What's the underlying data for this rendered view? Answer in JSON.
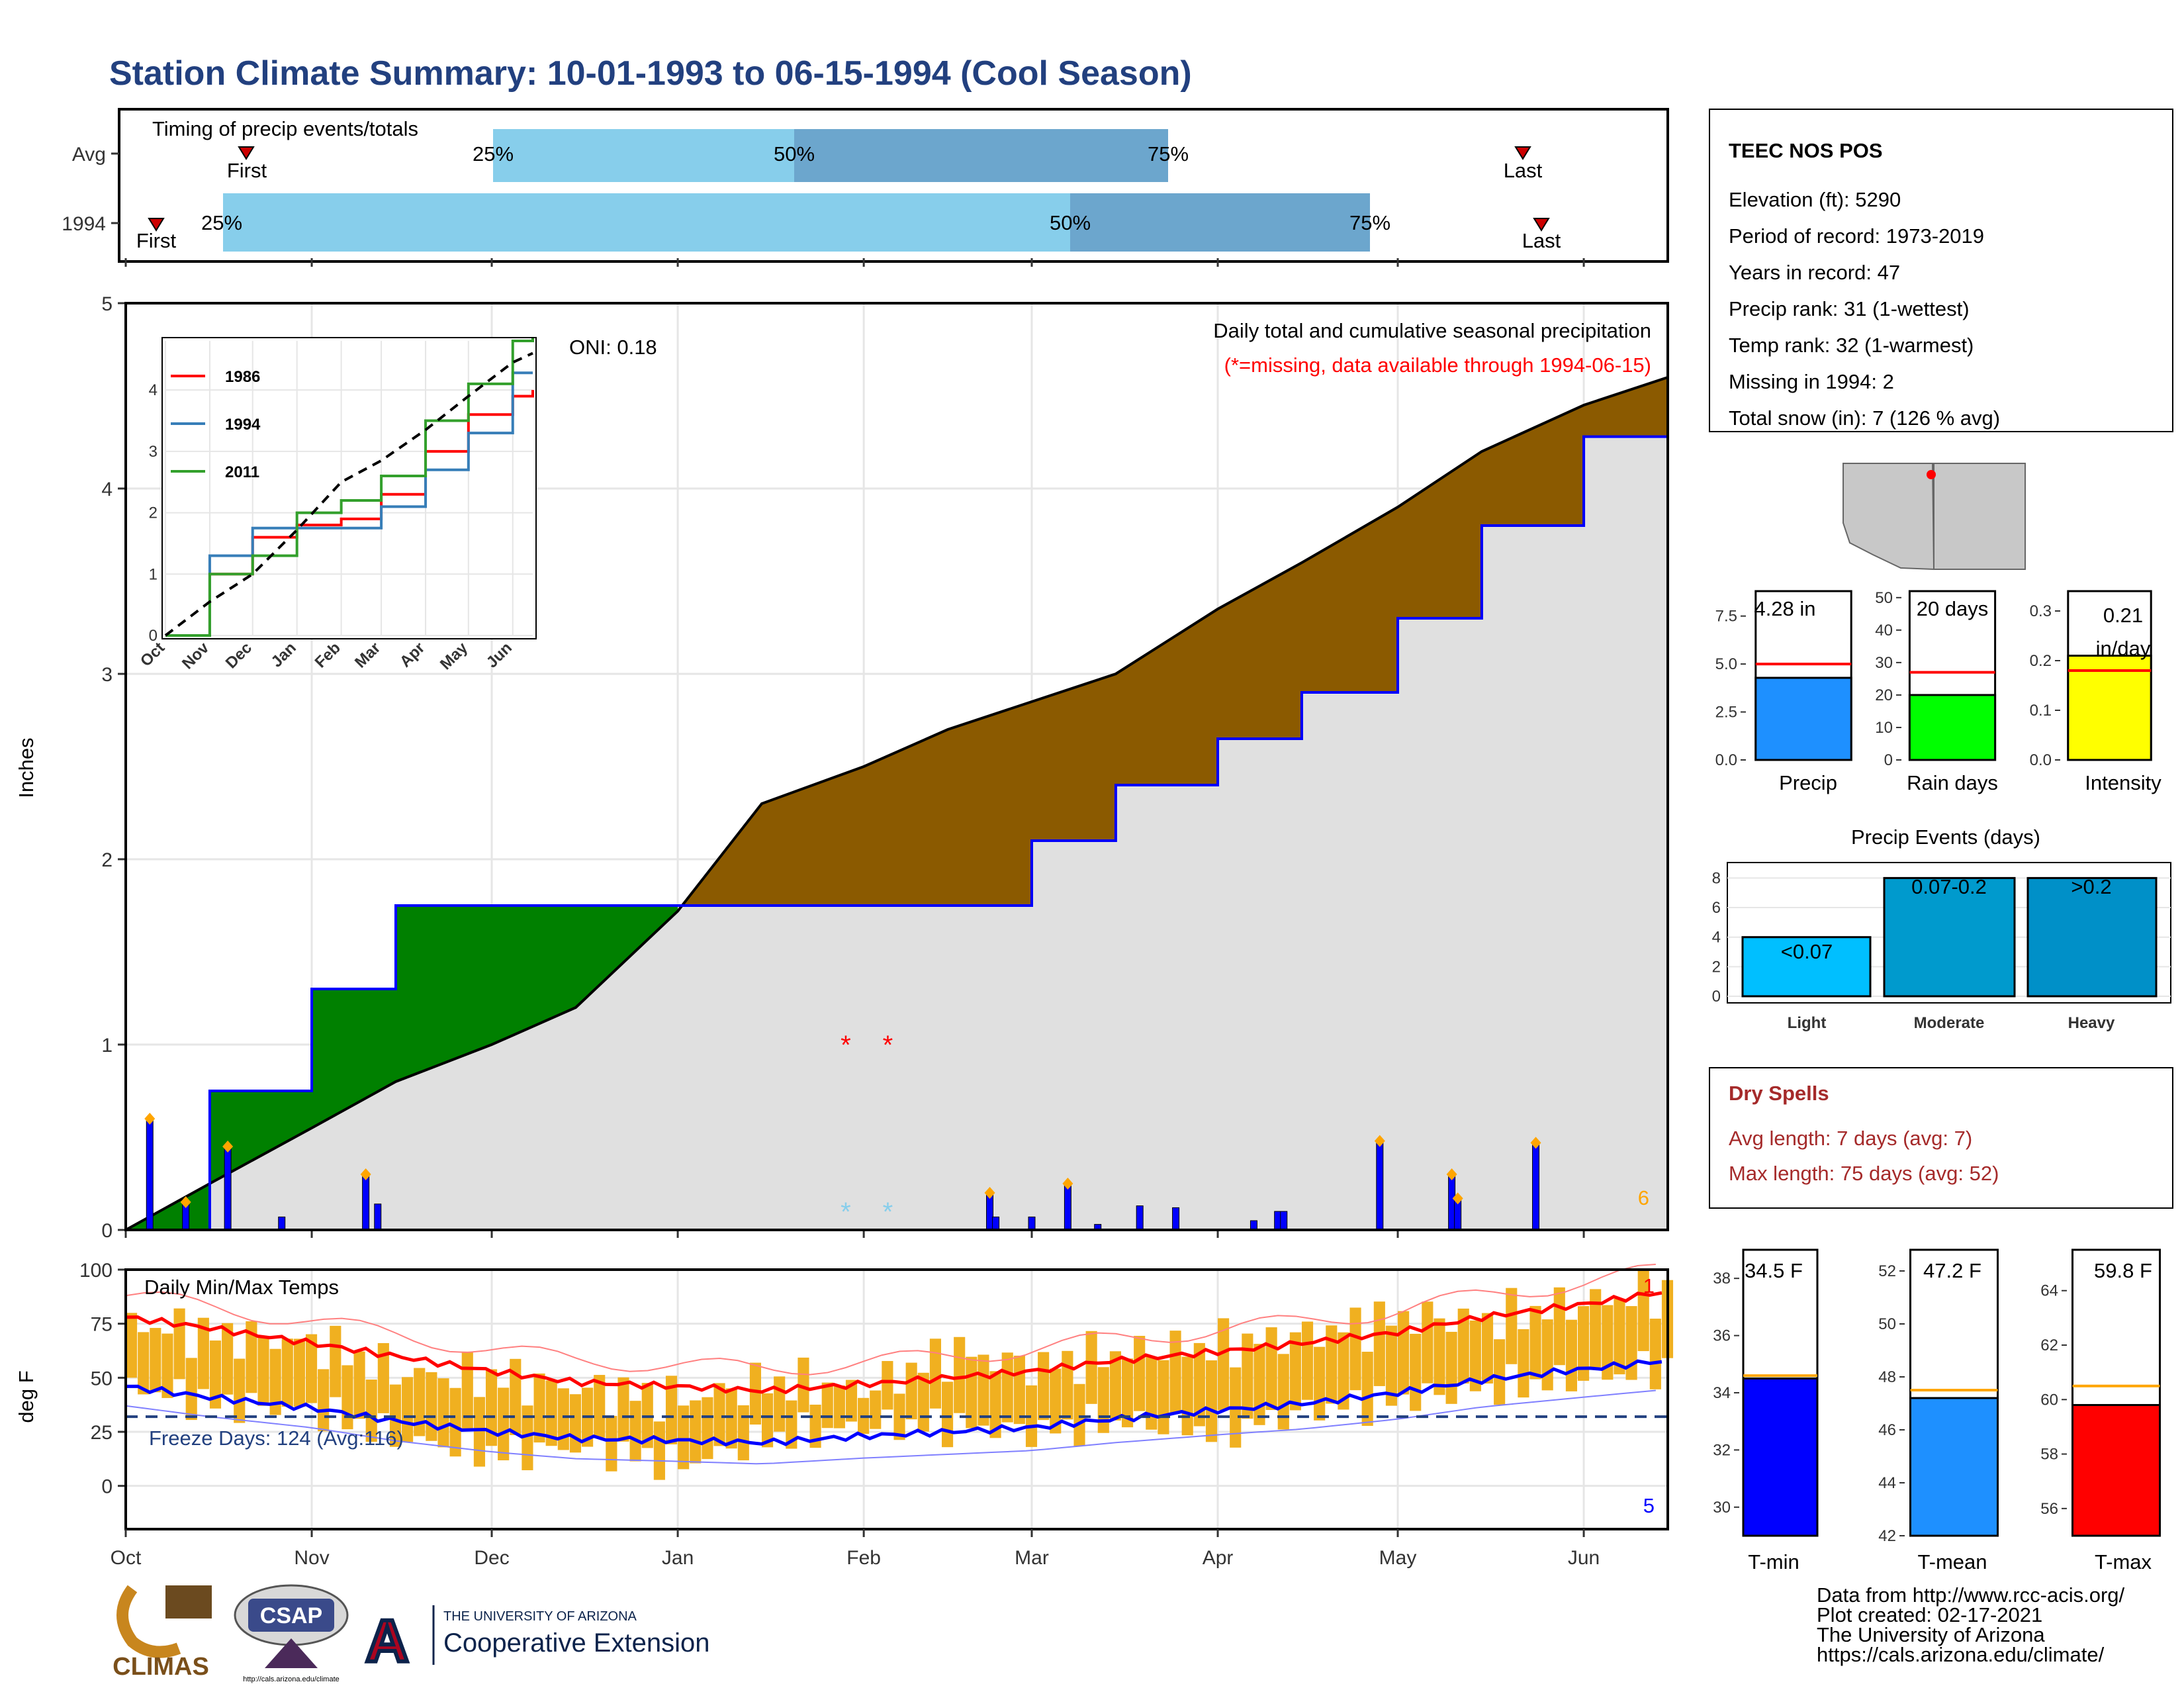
{
  "title": "Station Climate Summary: 10-01-1993 to 06-15-1994 (Cool Season)",
  "timing_panel": {
    "label": "Timing of precip events/totals",
    "rows": [
      {
        "name": "Avg",
        "first_label": "First",
        "last_label": "Last",
        "p25": "25%",
        "p50": "50%",
        "p75": "75%"
      },
      {
        "name": "1994",
        "first_label": "First",
        "last_label": "Last",
        "p25": "25%",
        "p50": "50%",
        "p75": "75%"
      }
    ]
  },
  "station": {
    "name": "TEEC NOS POS",
    "lines": [
      "Elevation (ft): 5290",
      "Period of record: 1973-2019",
      "Years in record: 47",
      "Precip rank: 31 (1-wettest)",
      "Temp rank: 32 (1-warmest)",
      "Missing in 1994: 2",
      "Total snow (in): 7 (126 % avg)"
    ]
  },
  "precip_panel": {
    "ylabel": "Inches",
    "oni": "ONI: 0.18",
    "legend_title": "Daily total and cumulative seasonal precipitation",
    "missing_note": "(*=missing, data available through 1994-06-15)",
    "corner_count": "6"
  },
  "temp_panel": {
    "ylabel": "deg F",
    "label": "Daily Min/Max Temps",
    "freeze_days": "Freeze Days: 124 (Avg:116)",
    "count_top": "1",
    "count_bottom": "5"
  },
  "month_labels": [
    "Oct",
    "Nov",
    "Dec",
    "Jan",
    "Feb",
    "Mar",
    "Apr",
    "May",
    "Jun"
  ],
  "inset_month_labels": [
    "Oct",
    "Nov",
    "Dec",
    "Jan",
    "Feb",
    "Mar",
    "Apr",
    "May",
    "Jun"
  ],
  "inset_legend": [
    "1986",
    "1994",
    "2011"
  ],
  "stat_bars": {
    "precip": {
      "label": "Precip",
      "value_label": "4.28 in"
    },
    "rain_days": {
      "label": "Rain days",
      "value_label": "20 days"
    },
    "intensity": {
      "label": "Intensity",
      "value_label": "0.21",
      "value_unit": "in/day"
    }
  },
  "events_panel": {
    "title": "Precip Events (days)",
    "bars": [
      {
        "name": "Light",
        "range": "<0.07"
      },
      {
        "name": "Moderate",
        "range": "0.07-0.2"
      },
      {
        "name": "Heavy",
        "range": ">0.2"
      }
    ]
  },
  "dry_spells": {
    "title": "Dry Spells",
    "avg": "Avg length: 7 days (avg: 7)",
    "max": "Max length: 75 days (avg: 52)"
  },
  "temp_bars": {
    "tmin": {
      "label": "T-min",
      "value_label": "34.5 F"
    },
    "tmean": {
      "label": "T-mean",
      "value_label": "47.2 F"
    },
    "tmax": {
      "label": "T-max",
      "value_label": "59.8 F"
    }
  },
  "credits": [
    "Data from http://www.rcc-acis.org/",
    "Plot created: 02-17-2021",
    "The University of Arizona",
    "https://cals.arizona.edu/climate/"
  ],
  "logos": {
    "climas": "CLIMAS",
    "csap": "CSAP",
    "csap_url": "http://cals.arizona.edu/climate",
    "ua_small": "THE UNIVERSITY OF ARIZONA",
    "ua_big": "Cooperative Extension"
  },
  "colors": {
    "title": "#22407f",
    "p25_band": "#87ceeb",
    "p50_band": "#6ca6cd",
    "above_avg": "#8b5a00",
    "below_avg": "#008000",
    "background_fill": "#e0e0e0",
    "daily_bar": "#0000ff",
    "temp_bar": "#f0b020",
    "tmax_line": "#ff0000",
    "tmin_line": "#0000ff",
    "dry_spell_text": "#a52a2a"
  },
  "chart_data": [
    {
      "type": "line",
      "name": "cumulative_precip",
      "xlabel": "",
      "ylabel": "Inches",
      "ylim": [
        0,
        5
      ],
      "x_dates": [
        "1993-10-01",
        "1993-10-15",
        "1993-11-01",
        "1993-11-15",
        "1993-12-01",
        "1993-12-15",
        "1994-01-01",
        "1994-01-15",
        "1994-02-01",
        "1994-02-15",
        "1994-03-01",
        "1994-03-15",
        "1994-04-01",
        "1994-04-15",
        "1994-05-01",
        "1994-05-15",
        "1994-06-01",
        "1994-06-15"
      ],
      "series": [
        {
          "name": "1994",
          "values": [
            0.0,
            0.75,
            1.3,
            1.75,
            1.75,
            1.75,
            1.75,
            1.75,
            1.75,
            1.75,
            2.1,
            2.4,
            2.65,
            2.9,
            3.3,
            3.8,
            4.28,
            4.28
          ]
        },
        {
          "name": "average",
          "values": [
            0.0,
            0.25,
            0.55,
            0.8,
            1.0,
            1.2,
            1.72,
            2.3,
            2.5,
            2.7,
            2.85,
            3.0,
            3.35,
            3.6,
            3.9,
            4.2,
            4.45,
            4.6
          ]
        }
      ],
      "grid": true
    },
    {
      "type": "bar",
      "name": "daily_precip",
      "ylabel": "Inches",
      "ylim": [
        0,
        5
      ],
      "events": [
        {
          "date": "1993-10-05",
          "value": 0.6
        },
        {
          "date": "1993-10-11",
          "value": 0.15
        },
        {
          "date": "1993-10-18",
          "value": 0.45
        },
        {
          "date": "1993-10-27",
          "value": 0.07
        },
        {
          "date": "1993-11-10",
          "value": 0.3
        },
        {
          "date": "1993-11-12",
          "value": 0.14
        },
        {
          "date": "1994-02-22",
          "value": 0.2
        },
        {
          "date": "1994-02-23",
          "value": 0.07
        },
        {
          "date": "1994-03-01",
          "value": 0.07
        },
        {
          "date": "1994-03-07",
          "value": 0.25
        },
        {
          "date": "1994-03-12",
          "value": 0.03
        },
        {
          "date": "1994-03-19",
          "value": 0.13
        },
        {
          "date": "1994-03-25",
          "value": 0.12
        },
        {
          "date": "1994-04-07",
          "value": 0.05
        },
        {
          "date": "1994-04-11",
          "value": 0.1
        },
        {
          "date": "1994-04-12",
          "value": 0.1
        },
        {
          "date": "1994-04-28",
          "value": 0.48
        },
        {
          "date": "1994-05-10",
          "value": 0.3
        },
        {
          "date": "1994-05-11",
          "value": 0.17
        },
        {
          "date": "1994-05-24",
          "value": 0.47
        }
      ],
      "missing_dates": [
        "1994-01-29",
        "1994-02-05"
      ]
    },
    {
      "type": "line",
      "name": "inset_cumulative_comparison",
      "ylim": [
        0,
        4.8
      ],
      "x_dates": [
        "1993-10-01",
        "1993-11-01",
        "1993-12-01",
        "1994-01-01",
        "1994-02-01",
        "1994-03-01",
        "1994-04-01",
        "1994-05-01",
        "1994-06-01",
        "1994-06-15"
      ],
      "series": [
        {
          "name": "1986",
          "values": [
            0.0,
            1.0,
            1.6,
            1.8,
            1.9,
            2.3,
            3.0,
            3.6,
            3.9,
            4.0
          ]
        },
        {
          "name": "1994",
          "values": [
            0.0,
            1.3,
            1.75,
            1.75,
            1.75,
            2.1,
            2.7,
            3.3,
            4.28,
            4.28
          ]
        },
        {
          "name": "2011",
          "values": [
            0.0,
            1.0,
            1.3,
            2.0,
            2.2,
            2.6,
            3.5,
            4.1,
            4.8,
            4.85
          ]
        },
        {
          "name": "average",
          "values": [
            0.0,
            0.55,
            1.0,
            1.72,
            2.5,
            2.85,
            3.35,
            3.9,
            4.45,
            4.6
          ]
        }
      ]
    },
    {
      "type": "line",
      "name": "daily_temps",
      "ylabel": "deg F",
      "ylim": [
        -20,
        100
      ],
      "x_dates": [
        "1993-10-01",
        "1993-10-15",
        "1993-11-01",
        "1993-11-15",
        "1993-12-01",
        "1993-12-15",
        "1994-01-01",
        "1994-01-15",
        "1994-02-01",
        "1994-02-15",
        "1994-03-01",
        "1994-03-15",
        "1994-04-01",
        "1994-04-15",
        "1994-05-01",
        "1994-05-15",
        "1994-06-01",
        "1994-06-15"
      ],
      "series": [
        {
          "name": "avg_tmax",
          "values": [
            78,
            73,
            66,
            60,
            53,
            48,
            46,
            44,
            47,
            50,
            53,
            58,
            62,
            66,
            71,
            78,
            84,
            90
          ]
        },
        {
          "name": "avg_tmin",
          "values": [
            46,
            41,
            36,
            30,
            25,
            22,
            21,
            20,
            23,
            25,
            27,
            31,
            35,
            38,
            43,
            49,
            54,
            58
          ]
        },
        {
          "name": "daily_tmax",
          "values": [
            75,
            70,
            66,
            52,
            50,
            45,
            40,
            48,
            45,
            62,
            55,
            62,
            65,
            70,
            78,
            77,
            85,
            90
          ]
        },
        {
          "name": "daily_tmin",
          "values": [
            46,
            38,
            35,
            22,
            15,
            18,
            10,
            22,
            28,
            28,
            25,
            30,
            25,
            35,
            40,
            45,
            50,
            55
          ]
        }
      ],
      "freeze_line": 32
    },
    {
      "type": "bar",
      "name": "season_stat_bars",
      "categories": [
        "Precip",
        "Rain days",
        "Intensity"
      ],
      "values": [
        4.28,
        20,
        0.21
      ],
      "averages": [
        5.0,
        27,
        0.18
      ],
      "ylims": [
        [
          0,
          8.8
        ],
        [
          0,
          52
        ],
        [
          0,
          0.34
        ]
      ],
      "ticks": [
        [
          "0.0",
          "2.5",
          "5.0",
          "7.5"
        ],
        [
          "0",
          "10",
          "20",
          "30",
          "40",
          "50"
        ],
        [
          "0.0",
          "0.1",
          "0.2",
          "0.3"
        ]
      ]
    },
    {
      "type": "bar",
      "name": "precip_events",
      "categories": [
        "Light",
        "Moderate",
        "Heavy"
      ],
      "values": [
        4,
        8,
        8
      ],
      "ylim": [
        0,
        8.6
      ],
      "ticks": [
        "0",
        "2",
        "4",
        "6",
        "8"
      ]
    },
    {
      "type": "bar",
      "name": "season_temp_bars",
      "categories": [
        "T-min",
        "T-mean",
        "T-max"
      ],
      "values": [
        34.5,
        47.2,
        59.8
      ],
      "averages": [
        34.6,
        47.5,
        60.5
      ],
      "ylims": [
        [
          29,
          39
        ],
        [
          42,
          52.8
        ],
        [
          55,
          65.5
        ]
      ],
      "ticks": [
        [
          "30",
          "32",
          "34",
          "36",
          "38"
        ],
        [
          "42",
          "44",
          "46",
          "48",
          "50",
          "52"
        ],
        [
          "56",
          "58",
          "60",
          "62",
          "64"
        ]
      ]
    }
  ]
}
